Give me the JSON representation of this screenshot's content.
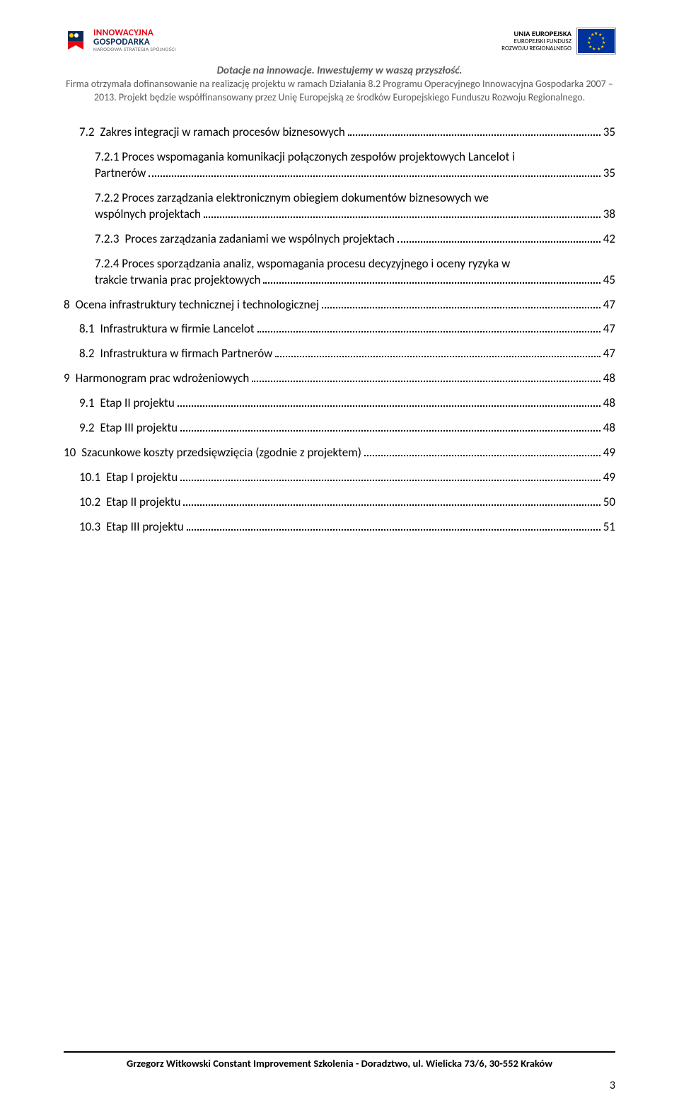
{
  "header": {
    "left_logo": {
      "l1": "INNOWACYJNA",
      "l2": "GOSPODARKA",
      "l3": "NARODOWA STRATEGIA SPÓJNOŚCI"
    },
    "right_logo": {
      "r1": "UNIA EUROPEJSKA",
      "r2": "EUROPEJSKI FUNDUSZ",
      "r3": "ROZWOJU REGIONALNEGO"
    },
    "subtitle_bold": "Dotacje na innowacje. Inwestujemy w waszą przyszłość.",
    "subtitle_rest": "Firma otrzymała dofinansowanie na realizację projektu w ramach Działania 8.2 Programu Operacyjnego Innowacyjna Gospodarka 2007 – 2013. Projekt będzie współfinansowany przez Unię Europejską ze środków Europejskiego Funduszu Rozwoju Regionalnego."
  },
  "toc": [
    {
      "indent": 1,
      "num": "7.2",
      "text": "Zakres integracji w ramach procesów biznesowych",
      "page": "35"
    },
    {
      "indent": 2,
      "num": "7.2.1",
      "text_line1": "Proces wspomagania komunikacji połączonych zespołów projektowych Lancelot i",
      "text_line2": "Partnerów",
      "page": "35"
    },
    {
      "indent": 2,
      "num": "7.2.2",
      "text_line1": "Proces zarządzania elektronicznym obiegiem dokumentów biznesowych we",
      "text_line2": "wspólnych projektach",
      "page": "38"
    },
    {
      "indent": 2,
      "num": "7.2.3",
      "text": "Proces zarządzania zadaniami we wspólnych projektach",
      "page": "42"
    },
    {
      "indent": 2,
      "num": "7.2.4",
      "text_line1": "Proces sporządzania analiz, wspomagania procesu decyzyjnego i oceny ryzyka w",
      "text_line2": "trakcie trwania prac projektowych",
      "page": "45"
    },
    {
      "indent": 0,
      "num": "8",
      "text": "Ocena infrastruktury technicznej i technologicznej",
      "page": "47"
    },
    {
      "indent": 1,
      "num": "8.1",
      "text": "Infrastruktura w firmie Lancelot",
      "page": "47"
    },
    {
      "indent": 1,
      "num": "8.2",
      "text": "Infrastruktura w firmach Partnerów",
      "page": "47"
    },
    {
      "indent": 0,
      "num": "9",
      "text": "Harmonogram prac wdrożeniowych",
      "page": "48"
    },
    {
      "indent": 1,
      "num": "9.1",
      "text": "Etap II projektu",
      "page": "48"
    },
    {
      "indent": 1,
      "num": "9.2",
      "text": "Etap III projektu",
      "page": "48"
    },
    {
      "indent": 0,
      "num": "10",
      "text": "Szacunkowe koszty przedsięwzięcia (zgodnie z projektem)",
      "page": "49"
    },
    {
      "indent": 1,
      "num": "10.1",
      "text": "Etap I projektu",
      "page": "49"
    },
    {
      "indent": 1,
      "num": "10.2",
      "text": "Etap II projektu",
      "page": "50"
    },
    {
      "indent": 1,
      "num": "10.3",
      "text": "Etap III projektu",
      "page": "51"
    }
  ],
  "footer": {
    "text": "Grzegorz Witkowski Constant Improvement Szkolenia - Doradztwo, ul. Wielicka 73/6, 30-552 Kraków",
    "page_number": "3"
  },
  "colors": {
    "text": "#000000",
    "subheader": "#595959",
    "logo_red": "#e30613",
    "logo_blue": "#0b2a55",
    "eu_blue": "#003399",
    "eu_yellow": "#ffcc00",
    "background": "#ffffff"
  }
}
